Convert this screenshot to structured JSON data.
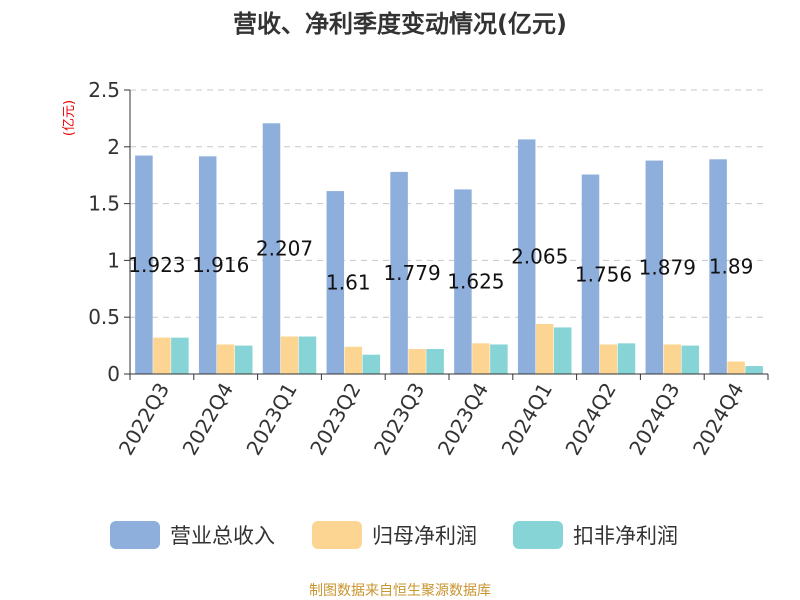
{
  "chart_data": {
    "type": "bar",
    "title": "营收、净利季度变动情况(亿元)",
    "ylabel": "(亿元)",
    "xlabel": "",
    "ylim": [
      0,
      2.5
    ],
    "yticks": [
      "0",
      "0.5",
      "1",
      "1.5",
      "2",
      "2.5"
    ],
    "grid": true,
    "legend_position": "bottom",
    "categories": [
      "2022Q3",
      "2022Q4",
      "2023Q1",
      "2023Q2",
      "2023Q3",
      "2023Q4",
      "2024Q1",
      "2024Q2",
      "2024Q3",
      "2024Q4"
    ],
    "series": [
      {
        "name": "营业总收入",
        "color": "#8eaedc",
        "values": [
          1.923,
          1.916,
          2.207,
          1.61,
          1.779,
          1.625,
          2.065,
          1.756,
          1.879,
          1.89
        ],
        "labels": [
          "1.923",
          "1.916",
          "2.207",
          "1.61",
          "1.779",
          "1.625",
          "2.065",
          "1.756",
          "1.879",
          "1.89"
        ]
      },
      {
        "name": "归母净利润",
        "color": "#fdd593",
        "values": [
          0.32,
          0.26,
          0.33,
          0.24,
          0.22,
          0.27,
          0.44,
          0.26,
          0.26,
          0.11
        ]
      },
      {
        "name": "扣非净利润",
        "color": "#87d4d6",
        "values": [
          0.32,
          0.25,
          0.33,
          0.17,
          0.22,
          0.26,
          0.41,
          0.27,
          0.25,
          0.07
        ]
      }
    ],
    "source": "制图数据来自恒生聚源数据库"
  }
}
